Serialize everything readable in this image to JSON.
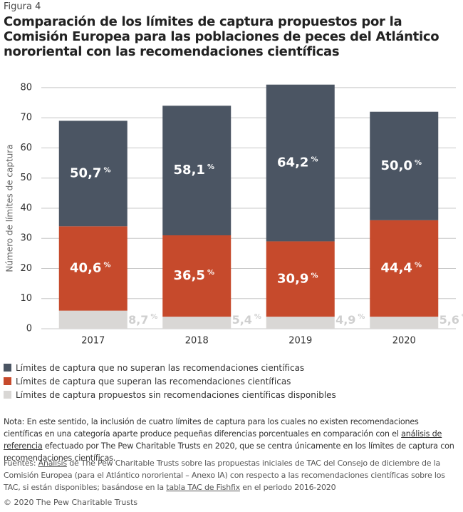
{
  "figure_label": "Figura 4",
  "chart_data": {
    "type": "bar",
    "stacked": true,
    "title": "Comparación de los límites de captura propuestos por la Comisión Europea para las poblaciones de peces del Atlántico nororiental con las recomendaciones científicas",
    "y_label": "Número de límites de captura",
    "categories": [
      "2017",
      "2018",
      "2019",
      "2020"
    ],
    "percent_sign": "%",
    "series": [
      {
        "name": "Límites de captura propuestos sin recomendaciones científicas disponibles",
        "color": "#d9d7d5",
        "label_color": "#cfcfcf",
        "values": [
          6,
          4,
          4,
          4
        ],
        "share_labels": [
          "8,7",
          "5,4",
          "4,9",
          "5,6"
        ]
      },
      {
        "name": "Límites de captura que superan las recomendaciones científicas",
        "color": "#c64a2c",
        "label_color": "#ffffff",
        "values": [
          28,
          27,
          25,
          32
        ],
        "share_labels": [
          "40,6",
          "36,5",
          "30,9",
          "44,4"
        ]
      },
      {
        "name": "Límites de captura que no superan las recomendaciones científicas",
        "color": "#4b5563",
        "label_color": "#ffffff",
        "values": [
          35,
          43,
          52,
          36
        ],
        "share_labels": [
          "50,7",
          "58,1",
          "64,2",
          "50,0"
        ]
      }
    ],
    "legend_order": [
      2,
      1,
      0
    ],
    "ylim": [
      0,
      84
    ],
    "yticks": [
      0,
      10,
      20,
      30,
      40,
      50,
      60,
      70,
      80
    ],
    "grid": true
  },
  "note": {
    "before": "Nota: En este sentido, la inclusión de cuatro límites de captura para los cuales no existen recomendaciones científicas en una categoría aparte produce pequeñas diferencias porcentuales en comparación con el",
    "link": "análisis de referencia",
    "after": "efectuado por The Pew Charitable Trusts en 2020, que se centra únicamente en los límites de captura con recomendaciones científicas."
  },
  "sources": {
    "before": "Fuentes:",
    "link1": "Análisis",
    "middle": "de The Pew Charitable Trusts sobre las propuestas iniciales de TAC del Consejo de diciembre de la Comisión Europea (para el Atlántico nororiental – Anexo IA) con respecto a las recomendaciones científicas sobre los TAC, si están disponibles; basándose en la",
    "link2": "tabla TAC de Fishfix",
    "after": "en el periodo 2016-2020"
  },
  "copyright": "© 2020 The Pew Charitable Trusts"
}
